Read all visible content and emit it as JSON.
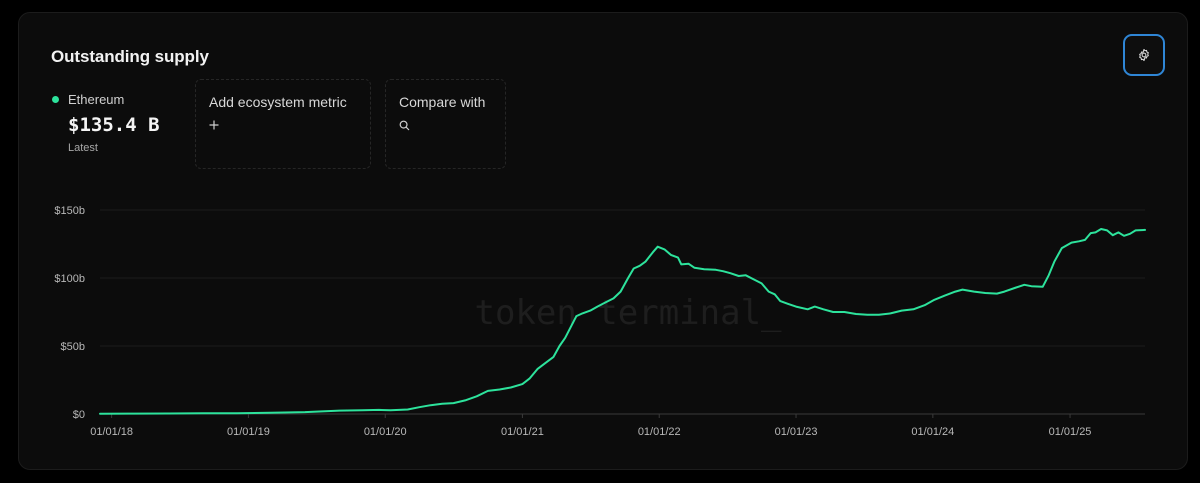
{
  "card": {
    "title": "Outstanding supply",
    "settings_icon": "gear-icon"
  },
  "legend": {
    "series_name": "Ethereum",
    "latest_value": "$135.4 B",
    "latest_label": "Latest",
    "color": "#2de39c"
  },
  "controls": {
    "add_metric_label": "Add ecosystem metric",
    "add_metric_icon": "plus-icon",
    "compare_label": "Compare with",
    "compare_icon": "search-icon"
  },
  "watermark": "token terminal_",
  "chart_data": {
    "type": "line",
    "title": "Outstanding supply",
    "xlabel": "",
    "ylabel": "",
    "x_range": [
      "2017-12-01",
      "2025-07-20"
    ],
    "ylim": [
      0,
      150
    ],
    "y_ticks": [
      0,
      50,
      100,
      150
    ],
    "y_tick_labels": [
      "$0",
      "$50b",
      "$100b",
      "$150b"
    ],
    "x_ticks": [
      "2018-01-01",
      "2019-01-01",
      "2020-01-01",
      "2021-01-01",
      "2022-01-01",
      "2023-01-01",
      "2024-01-01",
      "2025-01-01"
    ],
    "x_tick_labels": [
      "01/01/18",
      "01/01/19",
      "01/01/20",
      "01/01/21",
      "01/01/22",
      "01/01/23",
      "01/01/24",
      "01/01/25"
    ],
    "grid": "horizontal",
    "color": "#2de39c",
    "series": [
      {
        "name": "Ethereum",
        "points": [
          [
            "2017-12-01",
            0.2
          ],
          [
            "2018-03-01",
            0.3
          ],
          [
            "2018-06-01",
            0.4
          ],
          [
            "2018-09-01",
            0.5
          ],
          [
            "2018-12-01",
            0.6
          ],
          [
            "2019-03-01",
            0.9
          ],
          [
            "2019-06-01",
            1.4
          ],
          [
            "2019-09-01",
            2.5
          ],
          [
            "2019-11-01",
            2.7
          ],
          [
            "2019-12-15",
            3.0
          ],
          [
            "2020-01-15",
            2.8
          ],
          [
            "2020-03-01",
            3.3
          ],
          [
            "2020-04-01",
            5.0
          ],
          [
            "2020-05-01",
            6.5
          ],
          [
            "2020-06-01",
            7.5
          ],
          [
            "2020-07-01",
            8.0
          ],
          [
            "2020-08-01",
            10.0
          ],
          [
            "2020-09-01",
            13.0
          ],
          [
            "2020-10-01",
            17.0
          ],
          [
            "2020-11-01",
            18.0
          ],
          [
            "2020-12-01",
            19.5
          ],
          [
            "2021-01-01",
            22.0
          ],
          [
            "2021-01-20",
            26.0
          ],
          [
            "2021-02-10",
            33.0
          ],
          [
            "2021-03-01",
            37.0
          ],
          [
            "2021-03-25",
            42.0
          ],
          [
            "2021-04-10",
            50.0
          ],
          [
            "2021-04-25",
            56.0
          ],
          [
            "2021-05-12",
            65.0
          ],
          [
            "2021-05-25",
            72.0
          ],
          [
            "2021-06-10",
            74.0
          ],
          [
            "2021-07-01",
            76.0
          ],
          [
            "2021-07-20",
            79.0
          ],
          [
            "2021-08-10",
            82.0
          ],
          [
            "2021-09-01",
            85.0
          ],
          [
            "2021-09-20",
            90.0
          ],
          [
            "2021-10-10",
            100.0
          ],
          [
            "2021-10-25",
            107.0
          ],
          [
            "2021-11-10",
            109.0
          ],
          [
            "2021-11-25",
            112.0
          ],
          [
            "2021-12-15",
            119.0
          ],
          [
            "2021-12-28",
            123.0
          ],
          [
            "2022-01-15",
            121.0
          ],
          [
            "2022-02-01",
            117.0
          ],
          [
            "2022-02-20",
            115.0
          ],
          [
            "2022-03-01",
            110.0
          ],
          [
            "2022-03-20",
            110.5
          ],
          [
            "2022-04-05",
            107.5
          ],
          [
            "2022-05-01",
            106.5
          ],
          [
            "2022-06-01",
            106.0
          ],
          [
            "2022-06-20",
            105.0
          ],
          [
            "2022-07-10",
            103.5
          ],
          [
            "2022-08-01",
            101.5
          ],
          [
            "2022-08-20",
            102.0
          ],
          [
            "2022-09-10",
            99.0
          ],
          [
            "2022-10-01",
            96.0
          ],
          [
            "2022-10-20",
            90.0
          ],
          [
            "2022-11-05",
            88.0
          ],
          [
            "2022-11-20",
            83.0
          ],
          [
            "2022-12-10",
            81.0
          ],
          [
            "2023-01-01",
            79.0
          ],
          [
            "2023-02-01",
            77.0
          ],
          [
            "2023-02-20",
            79.0
          ],
          [
            "2023-03-15",
            77.0
          ],
          [
            "2023-04-10",
            75.0
          ],
          [
            "2023-05-10",
            75.0
          ],
          [
            "2023-06-10",
            73.5
          ],
          [
            "2023-07-10",
            73.0
          ],
          [
            "2023-08-10",
            73.0
          ],
          [
            "2023-09-10",
            74.0
          ],
          [
            "2023-10-10",
            76.0
          ],
          [
            "2023-11-10",
            77.0
          ],
          [
            "2023-12-10",
            80.0
          ],
          [
            "2024-01-05",
            84.0
          ],
          [
            "2024-02-01",
            87.0
          ],
          [
            "2024-03-01",
            90.0
          ],
          [
            "2024-03-20",
            91.5
          ],
          [
            "2024-04-20",
            90.0
          ],
          [
            "2024-05-20",
            89.0
          ],
          [
            "2024-06-20",
            88.5
          ],
          [
            "2024-07-10",
            90.0
          ],
          [
            "2024-08-10",
            93.0
          ],
          [
            "2024-09-01",
            95.0
          ],
          [
            "2024-09-20",
            94.0
          ],
          [
            "2024-10-20",
            93.5
          ],
          [
            "2024-11-05",
            102.0
          ],
          [
            "2024-11-20",
            112.0
          ],
          [
            "2024-12-10",
            122.0
          ],
          [
            "2025-01-05",
            126.0
          ],
          [
            "2025-01-25",
            127.0
          ],
          [
            "2025-02-10",
            128.0
          ],
          [
            "2025-02-25",
            133.0
          ],
          [
            "2025-03-10",
            133.5
          ],
          [
            "2025-03-25",
            136.0
          ],
          [
            "2025-04-10",
            135.0
          ],
          [
            "2025-04-25",
            131.5
          ],
          [
            "2025-05-10",
            133.5
          ],
          [
            "2025-05-25",
            131.0
          ],
          [
            "2025-06-10",
            132.5
          ],
          [
            "2025-06-25",
            135.0
          ],
          [
            "2025-07-20",
            135.4
          ]
        ]
      }
    ]
  }
}
